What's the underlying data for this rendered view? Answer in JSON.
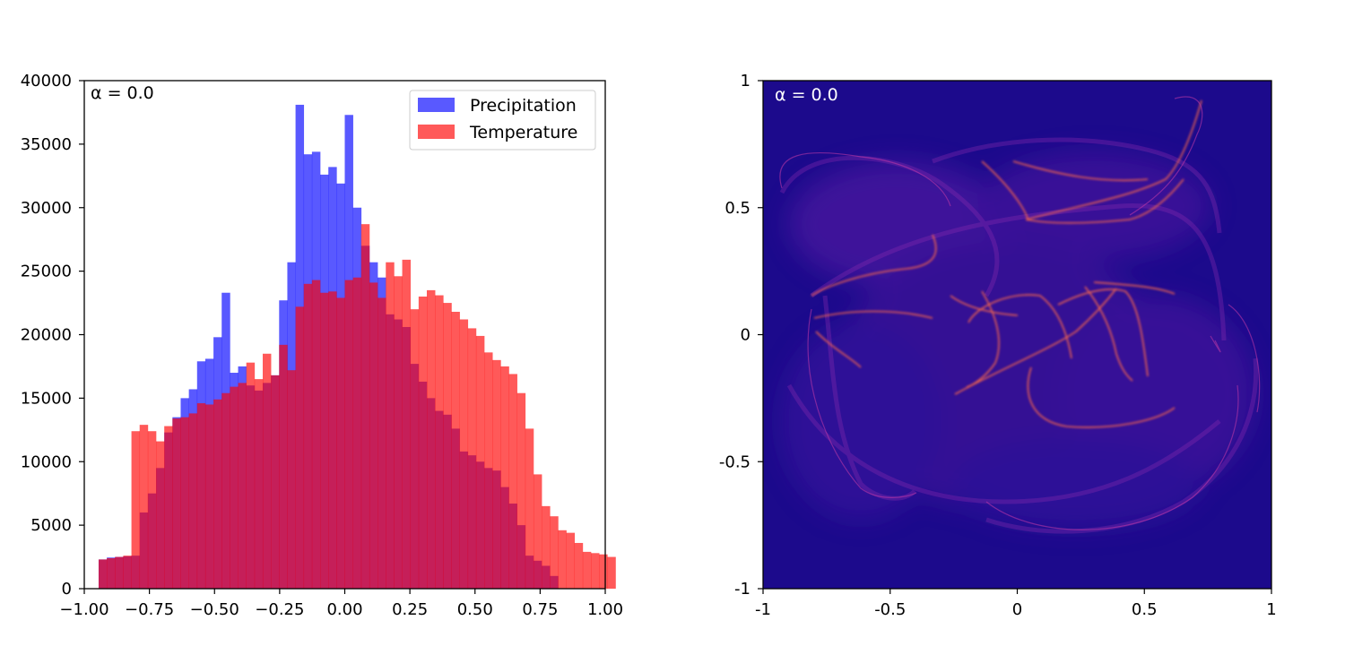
{
  "chart_data": [
    {
      "type": "bar",
      "subtype": "histogram",
      "annotation": "α = 0.0",
      "legend_position": "top-right",
      "xlim": [
        -1.0,
        1.0
      ],
      "ylim": [
        0,
        40000
      ],
      "x_ticks": [
        "−1.00",
        "−0.75",
        "−0.50",
        "−0.25",
        "0.00",
        "0.25",
        "0.50",
        "0.75",
        "1.00"
      ],
      "y_ticks": [
        "0",
        "5000",
        "10000",
        "15000",
        "20000",
        "25000",
        "30000",
        "35000",
        "40000"
      ],
      "bin_edges_start": -0.945,
      "bin_width": 0.0315,
      "series": [
        {
          "name": "Precipitation",
          "color": "#0000ff",
          "alpha": 0.65,
          "values": [
            2300,
            2450,
            2500,
            2550,
            2600,
            6000,
            7500,
            9500,
            12300,
            13500,
            15000,
            15700,
            17900,
            18100,
            19800,
            23300,
            17000,
            17500,
            16000,
            15600,
            16200,
            16800,
            22700,
            25700,
            38100,
            34200,
            34400,
            32600,
            33200,
            31900,
            37300,
            30000,
            27000,
            25700,
            24500,
            21600,
            21200,
            20600,
            17700,
            16300,
            15000,
            14000,
            13700,
            12600,
            10800,
            10500,
            10000,
            9500,
            9300,
            8000,
            6700,
            5000,
            2600,
            2200,
            1800,
            1000
          ]
        },
        {
          "name": "Temperature",
          "color": "#ff0000",
          "alpha": 0.65,
          "values": [
            2300,
            2400,
            2500,
            2600,
            12400,
            12900,
            12400,
            11600,
            12800,
            13400,
            13500,
            13800,
            14600,
            14500,
            14900,
            15400,
            15900,
            16200,
            17800,
            16500,
            18500,
            16800,
            19200,
            17200,
            22200,
            24000,
            24300,
            23300,
            23400,
            22900,
            24300,
            24500,
            28700,
            24100,
            22900,
            25700,
            24600,
            25900,
            22000,
            23000,
            23500,
            23100,
            22500,
            21800,
            21200,
            20500,
            19900,
            18600,
            18000,
            17500,
            16900,
            15400,
            12600,
            9000,
            6500,
            5700,
            4600,
            4400,
            3600,
            2900,
            2800,
            2700,
            2500
          ]
        }
      ]
    },
    {
      "type": "heatmap",
      "subtype": "attractor density image",
      "annotation": "α = 0.0",
      "xlim": [
        -1,
        1
      ],
      "ylim": [
        -1,
        1
      ],
      "x_ticks": [
        "-1",
        "-0.5",
        "0",
        "0.5",
        "1"
      ],
      "y_ticks": [
        "-1",
        "-0.5",
        "0",
        "0.5",
        "1"
      ],
      "background_color": "#1c0a8c",
      "colormap": "plasma"
    }
  ]
}
